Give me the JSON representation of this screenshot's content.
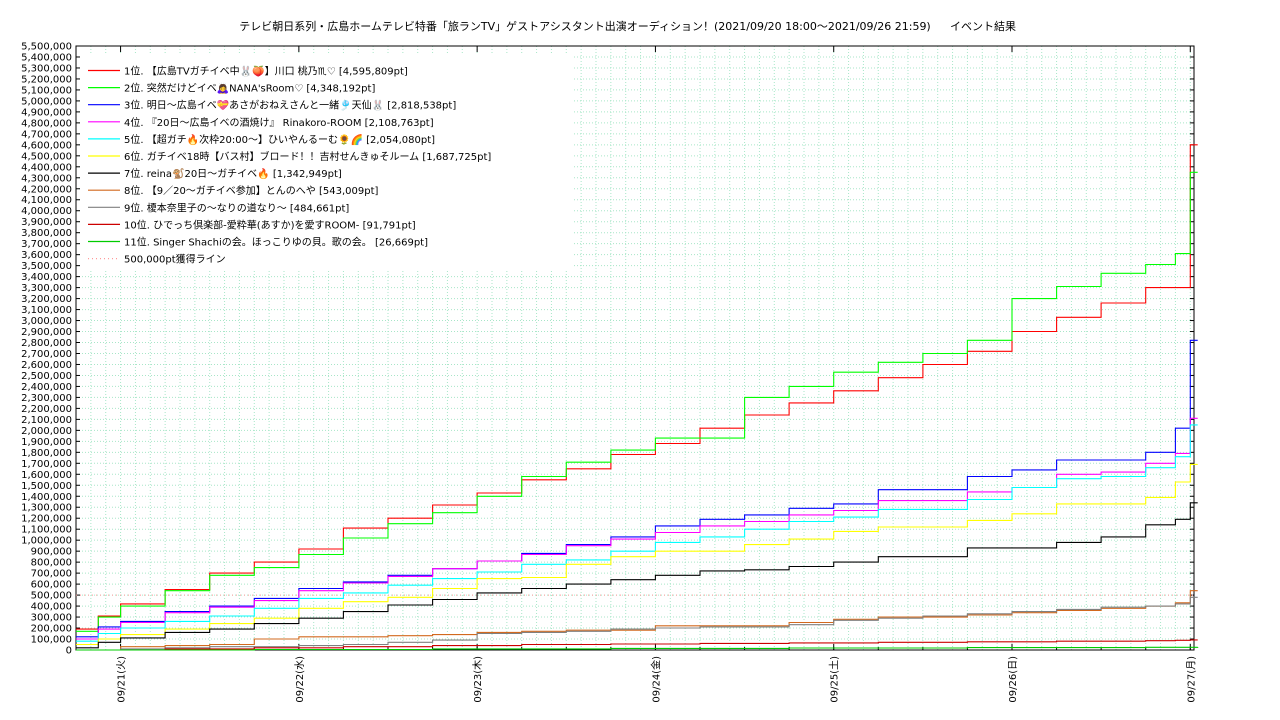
{
  "chart_data": {
    "type": "line",
    "title": "テレビ朝日系列・広島ホームテレビ特番「旅ランTV」ゲストアシスタント出演オーディション！(2021/09/20 18:00〜2021/09/26 21:59)",
    "subtitle": "イベント結果",
    "xlabel": "",
    "ylabel": "",
    "xlim": [
      "2021-09-20 18:00",
      "2021-09-27 00:00"
    ],
    "ylim": [
      0,
      5500000
    ],
    "y_tick_step": 100000,
    "x_ticks": [
      "09/21(火)",
      "09/22(水)",
      "09/23(木)",
      "09/24(金)",
      "09/25(土)",
      "09/26(日)",
      "09/27(月)"
    ],
    "grid": true,
    "legend_position": "top-left",
    "series": [
      {
        "name": "1位. 【広島TVガチイベ中🐰🍑】川口 桃乃♏♡ [4,595,809pt]",
        "color": "#ff0000",
        "x": [
          0,
          3,
          6,
          12,
          18,
          24,
          30,
          36,
          42,
          48,
          54,
          60,
          66,
          72,
          78,
          84,
          90,
          96,
          102,
          108,
          114,
          120,
          126,
          132,
          138,
          144,
          148,
          150,
          151
        ],
        "y": [
          190000,
          310000,
          420000,
          550000,
          700000,
          800000,
          920000,
          1110000,
          1200000,
          1320000,
          1430000,
          1550000,
          1650000,
          1780000,
          1880000,
          2020000,
          2140000,
          2250000,
          2360000,
          2480000,
          2600000,
          2720000,
          2900000,
          3030000,
          3160000,
          3300000,
          3300000,
          4600000,
          4600000
        ]
      },
      {
        "name": "2位. 突然だけどイベ🙇‍♀️NANA'sRoom♡ [4,348,192pt]",
        "color": "#00ff00",
        "x": [
          0,
          3,
          6,
          12,
          18,
          24,
          30,
          36,
          42,
          48,
          54,
          60,
          66,
          72,
          78,
          84,
          90,
          96,
          102,
          108,
          114,
          120,
          126,
          132,
          138,
          144,
          148,
          150,
          151
        ],
        "y": [
          170000,
          300000,
          400000,
          540000,
          680000,
          750000,
          870000,
          1020000,
          1150000,
          1250000,
          1400000,
          1580000,
          1710000,
          1820000,
          1930000,
          1930000,
          2300000,
          2400000,
          2530000,
          2620000,
          2700000,
          2820000,
          3200000,
          3310000,
          3430000,
          3510000,
          3610000,
          4350000,
          4350000
        ]
      },
      {
        "name": "3位. 明日〜広島イベ💝あさがおねえさんと一緒🎐天仙🐰 [2,818,538pt]",
        "color": "#0000ff",
        "x": [
          0,
          3,
          6,
          12,
          18,
          24,
          30,
          36,
          42,
          48,
          54,
          60,
          66,
          72,
          78,
          84,
          90,
          96,
          102,
          108,
          114,
          120,
          126,
          132,
          138,
          144,
          148,
          150,
          151
        ],
        "y": [
          120000,
          210000,
          260000,
          350000,
          400000,
          470000,
          560000,
          620000,
          680000,
          740000,
          810000,
          880000,
          960000,
          1030000,
          1130000,
          1190000,
          1230000,
          1290000,
          1330000,
          1460000,
          1460000,
          1580000,
          1640000,
          1730000,
          1730000,
          1800000,
          2020000,
          2820000,
          2820000
        ]
      },
      {
        "name": "4位. 『20日〜広島イベの酒焼け』 Rinakoro-ROOM [2,108,763pt]",
        "color": "#ff00ff",
        "x": [
          0,
          3,
          6,
          12,
          18,
          24,
          30,
          36,
          42,
          48,
          54,
          60,
          66,
          72,
          78,
          84,
          90,
          96,
          102,
          108,
          114,
          120,
          126,
          132,
          138,
          144,
          148,
          150,
          151
        ],
        "y": [
          100000,
          190000,
          250000,
          340000,
          390000,
          450000,
          540000,
          610000,
          670000,
          740000,
          810000,
          870000,
          950000,
          1010000,
          1070000,
          1130000,
          1170000,
          1230000,
          1270000,
          1360000,
          1360000,
          1440000,
          1480000,
          1600000,
          1620000,
          1700000,
          1790000,
          2110000,
          2110000
        ]
      },
      {
        "name": "5位. 【超ガチ🔥次枠20:00〜】ひいやんるーむ🌻🌈 [2,054,080pt]",
        "color": "#00ffff",
        "x": [
          0,
          3,
          6,
          12,
          18,
          24,
          30,
          36,
          42,
          48,
          54,
          60,
          66,
          72,
          78,
          84,
          90,
          96,
          102,
          108,
          114,
          120,
          126,
          132,
          138,
          144,
          148,
          150,
          151
        ],
        "y": [
          80000,
          150000,
          200000,
          260000,
          310000,
          380000,
          470000,
          520000,
          590000,
          650000,
          710000,
          780000,
          820000,
          900000,
          980000,
          1030000,
          1100000,
          1170000,
          1210000,
          1280000,
          1280000,
          1370000,
          1480000,
          1560000,
          1580000,
          1660000,
          1760000,
          2050000,
          2050000
        ]
      },
      {
        "name": "6位. ガチイベ18時【バス村】ブロード！！吉村せんきゅそルーム [1,687,725pt]",
        "color": "#ffff00",
        "x": [
          0,
          3,
          6,
          12,
          18,
          24,
          30,
          36,
          42,
          48,
          54,
          60,
          66,
          72,
          78,
          84,
          90,
          96,
          102,
          108,
          114,
          120,
          126,
          132,
          138,
          144,
          148,
          150,
          151
        ],
        "y": [
          50000,
          100000,
          140000,
          190000,
          240000,
          290000,
          380000,
          440000,
          480000,
          560000,
          650000,
          660000,
          780000,
          850000,
          900000,
          900000,
          960000,
          1010000,
          1080000,
          1120000,
          1120000,
          1180000,
          1240000,
          1330000,
          1330000,
          1390000,
          1530000,
          1690000,
          1690000
        ]
      },
      {
        "name": "7位. reina🐒20日〜ガチイベ🔥 [1,342,949pt]",
        "color": "#000000",
        "x": [
          0,
          3,
          6,
          12,
          18,
          24,
          30,
          36,
          42,
          48,
          54,
          60,
          66,
          72,
          78,
          84,
          90,
          96,
          102,
          108,
          114,
          120,
          126,
          132,
          138,
          144,
          148,
          150,
          151
        ],
        "y": [
          20000,
          70000,
          110000,
          160000,
          190000,
          240000,
          290000,
          350000,
          410000,
          460000,
          520000,
          560000,
          600000,
          640000,
          680000,
          720000,
          730000,
          760000,
          800000,
          850000,
          850000,
          930000,
          930000,
          980000,
          1030000,
          1140000,
          1190000,
          1340000,
          1340000
        ]
      },
      {
        "name": "8位. 【9／20〜ガチイベ参加】とんのへや [543,009pt]",
        "color": "#d2691e",
        "x": [
          0,
          6,
          12,
          18,
          24,
          30,
          36,
          42,
          48,
          54,
          60,
          66,
          72,
          78,
          84,
          90,
          96,
          102,
          108,
          114,
          120,
          126,
          132,
          138,
          144,
          148,
          150,
          151
        ],
        "y": [
          0,
          30000,
          40000,
          50000,
          100000,
          120000,
          120000,
          130000,
          140000,
          160000,
          170000,
          180000,
          180000,
          220000,
          220000,
          220000,
          250000,
          280000,
          300000,
          300000,
          320000,
          340000,
          360000,
          380000,
          400000,
          430000,
          540000,
          540000
        ]
      },
      {
        "name": "9位. 榎本奈里子の〜なりの道なり〜 [484,661pt]",
        "color": "#808080",
        "x": [
          0,
          6,
          12,
          18,
          24,
          30,
          36,
          42,
          48,
          54,
          60,
          66,
          72,
          78,
          84,
          90,
          96,
          102,
          108,
          114,
          120,
          126,
          132,
          138,
          144,
          148,
          150,
          151
        ],
        "y": [
          0,
          10000,
          20000,
          30000,
          30000,
          40000,
          50000,
          70000,
          90000,
          150000,
          160000,
          170000,
          190000,
          200000,
          210000,
          210000,
          230000,
          270000,
          290000,
          310000,
          330000,
          350000,
          370000,
          390000,
          400000,
          420000,
          480000,
          480000
        ]
      },
      {
        "name": "10位. ひでっち倶楽部-愛粋華(あすか)を愛すROOM- [91,791pt]",
        "color": "#cc0000",
        "x": [
          0,
          12,
          24,
          36,
          48,
          60,
          72,
          84,
          96,
          108,
          120,
          132,
          144,
          148,
          150,
          151
        ],
        "y": [
          0,
          10000,
          20000,
          30000,
          40000,
          50000,
          55000,
          60000,
          65000,
          70000,
          75000,
          80000,
          85000,
          88000,
          92000,
          92000
        ]
      },
      {
        "name": "11位. Singer Shachiの会。ほっこりゆの貝。歌の会。 [26,669pt]",
        "color": "#00cc00",
        "x": [
          0,
          24,
          48,
          72,
          96,
          120,
          144,
          151
        ],
        "y": [
          0,
          5000,
          10000,
          15000,
          18000,
          22000,
          25000,
          27000
        ]
      }
    ],
    "threshold": {
      "name": "500,000pt獲得ライン",
      "value": 500000,
      "color": "#ff9999"
    }
  }
}
